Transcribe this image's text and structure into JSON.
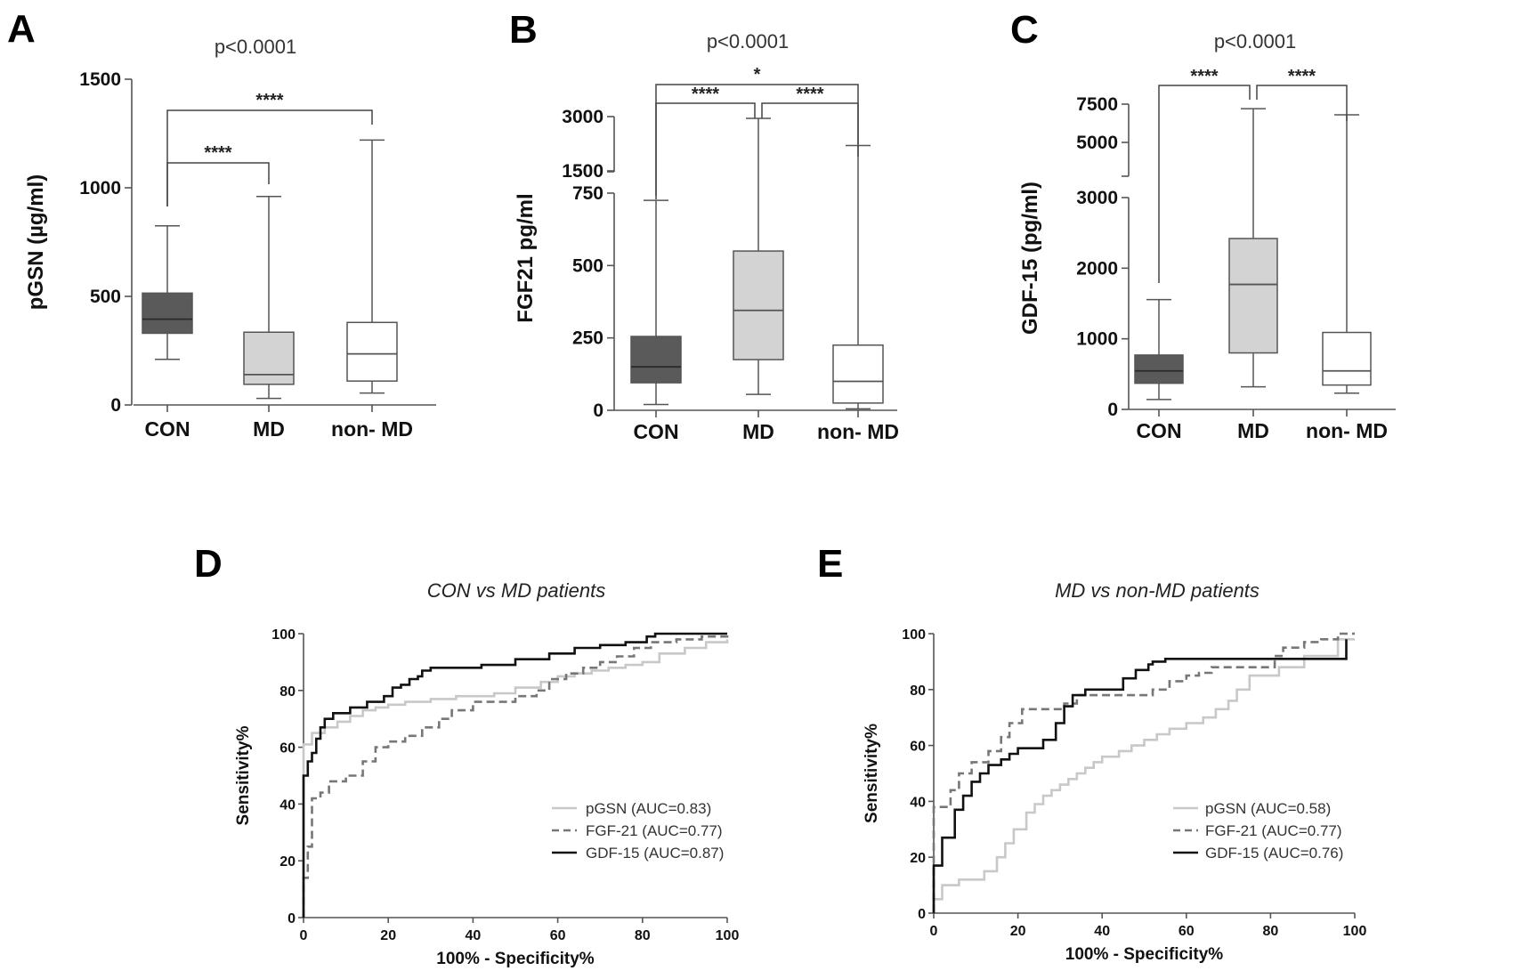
{
  "chart_data": [
    {
      "panel": "A",
      "type": "box",
      "title": "p<0.0001",
      "ylabel": "pGSN (µg/ml)",
      "categories": [
        "CON",
        "MD",
        "non- MD"
      ],
      "yticks": [
        0,
        500,
        1000,
        1500
      ],
      "yticks_text": [
        "0",
        "500",
        "1000",
        "1500"
      ],
      "ylim": [
        0,
        1500
      ],
      "boxes": [
        {
          "name": "CON",
          "min": 210,
          "q1": 330,
          "median": 395,
          "q3": 515,
          "max": 825,
          "fill": "#5a5a5a",
          "median_color": "#2a2a2a"
        },
        {
          "name": "MD",
          "min": 30,
          "q1": 95,
          "median": 140,
          "q3": 335,
          "max": 960,
          "fill": "#d3d3d3",
          "median_color": "#555555"
        },
        {
          "name": "non- MD",
          "min": 55,
          "q1": 110,
          "median": 235,
          "q3": 380,
          "max": 1220,
          "fill": "#ffffff",
          "median_color": "#555555"
        }
      ],
      "significance": [
        {
          "from": "CON",
          "to": "MD",
          "label": "****"
        },
        {
          "from": "CON",
          "to": "non- MD",
          "label": "****"
        }
      ]
    },
    {
      "panel": "B",
      "type": "box",
      "title": "p<0.0001",
      "ylabel": "FGF21 pg/ml",
      "categories": [
        "CON",
        "MD",
        "non- MD"
      ],
      "axis_break": true,
      "lower_yticks": [
        0,
        250,
        500,
        750
      ],
      "lower_yticks_text": [
        "0",
        "250",
        "500",
        "750"
      ],
      "upper_yticks": [
        1500,
        3000
      ],
      "upper_yticks_text": [
        "1500",
        "3000"
      ],
      "boxes": [
        {
          "name": "CON",
          "min": 20,
          "q1": 95,
          "median": 150,
          "q3": 255,
          "max": 725,
          "fill": "#5a5a5a",
          "median_color": "#2a2a2a"
        },
        {
          "name": "MD",
          "min": 55,
          "q1": 175,
          "median": 345,
          "q3": 550,
          "max": 2950,
          "fill": "#d3d3d3",
          "median_color": "#555555"
        },
        {
          "name": "non- MD",
          "min": 5,
          "q1": 25,
          "median": 100,
          "q3": 225,
          "max": 2200,
          "fill": "#ffffff",
          "median_color": "#555555"
        }
      ],
      "significance": [
        {
          "from": "CON",
          "to": "MD",
          "label": "****"
        },
        {
          "from": "MD",
          "to": "non- MD",
          "label": "****"
        },
        {
          "from": "CON",
          "to": "non- MD",
          "label": "*"
        }
      ]
    },
    {
      "panel": "C",
      "type": "box",
      "title": "p<0.0001",
      "ylabel": "GDF-15 (pg/ml)",
      "categories": [
        "CON",
        "MD",
        "non- MD"
      ],
      "axis_break": true,
      "lower_yticks": [
        0,
        1000,
        2000,
        3000
      ],
      "lower_yticks_text": [
        "0",
        "1000",
        "2000",
        "3000"
      ],
      "upper_yticks": [
        5000,
        7500
      ],
      "upper_yticks_text": [
        "5000",
        "7500"
      ],
      "boxes": [
        {
          "name": "CON",
          "min": 140,
          "q1": 370,
          "median": 545,
          "q3": 770,
          "max": 1555,
          "fill": "#5a5a5a",
          "median_color": "#2a2a2a"
        },
        {
          "name": "MD",
          "min": 320,
          "q1": 800,
          "median": 1770,
          "q3": 2420,
          "max": 7200,
          "fill": "#d3d3d3",
          "median_color": "#555555"
        },
        {
          "name": "non- MD",
          "min": 230,
          "q1": 345,
          "median": 545,
          "q3": 1090,
          "max": 6800,
          "fill": "#ffffff",
          "median_color": "#555555"
        }
      ],
      "significance": [
        {
          "from": "CON",
          "to": "MD",
          "label": "****"
        },
        {
          "from": "MD",
          "to": "non- MD",
          "label": "****"
        }
      ]
    },
    {
      "panel": "D",
      "type": "line",
      "subtype": "roc",
      "title": "CON vs MD patients",
      "xlabel": "100% - Specificity%",
      "ylabel": "Sensitivity%",
      "xlim": [
        0,
        100
      ],
      "ylim": [
        0,
        100
      ],
      "xticks": [
        0,
        20,
        40,
        60,
        80,
        100
      ],
      "yticks": [
        0,
        20,
        40,
        60,
        80,
        100
      ],
      "ticks_text": [
        "0",
        "20",
        "40",
        "60",
        "80",
        "100"
      ],
      "series": [
        {
          "name": "pGSN (AUC=0.83)",
          "color": "#c8c8c8",
          "dash": "solid",
          "x": [
            0,
            0,
            2,
            2,
            5,
            5,
            8,
            8,
            11,
            11,
            14,
            14,
            17,
            17,
            20,
            20,
            24,
            24,
            30,
            30,
            36,
            36,
            45,
            45,
            50,
            50,
            56,
            56,
            60,
            60,
            64,
            64,
            68,
            68,
            72,
            72,
            76,
            76,
            80,
            80,
            84,
            84,
            90,
            90,
            95,
            95,
            100,
            100
          ],
          "y": [
            0,
            61,
            61,
            65,
            65,
            67,
            67,
            69,
            69,
            71,
            71,
            73,
            73,
            74,
            74,
            75,
            75,
            76,
            76,
            77,
            77,
            78,
            78,
            79,
            79,
            81,
            81,
            83,
            83,
            85,
            85,
            86,
            86,
            87,
            87,
            88,
            88,
            89,
            89,
            90,
            90,
            93,
            93,
            95,
            95,
            97,
            97,
            98
          ]
        },
        {
          "name": "FGF-21 (AUC=0.77)",
          "color": "#777777",
          "dash": "dashed",
          "x": [
            0,
            0,
            1,
            1,
            2,
            2,
            4,
            4,
            6,
            6,
            10,
            10,
            14,
            14,
            17,
            17,
            20,
            20,
            24,
            24,
            28,
            28,
            32,
            32,
            35,
            35,
            40,
            40,
            50,
            50,
            55,
            55,
            58,
            58,
            62,
            62,
            66,
            66,
            70,
            70,
            74,
            74,
            78,
            78,
            82,
            82,
            88,
            88,
            94,
            94,
            100,
            100
          ],
          "y": [
            0,
            14,
            14,
            25,
            25,
            42,
            42,
            44,
            44,
            48,
            48,
            50,
            50,
            55,
            55,
            60,
            60,
            62,
            62,
            64,
            64,
            67,
            67,
            70,
            70,
            73,
            73,
            76,
            76,
            78,
            78,
            80,
            80,
            84,
            84,
            86,
            86,
            88,
            88,
            90,
            90,
            92,
            92,
            95,
            95,
            97,
            97,
            98,
            98,
            99,
            99,
            100
          ]
        },
        {
          "name": "GDF-15 (AUC=0.87)",
          "color": "#111111",
          "dash": "solid",
          "x": [
            0,
            0,
            1,
            1,
            2,
            2,
            3,
            3,
            4,
            4,
            5,
            5,
            7,
            7,
            11,
            11,
            15,
            15,
            19,
            19,
            21,
            21,
            23,
            23,
            25,
            25,
            27,
            27,
            28,
            28,
            30,
            30,
            42,
            42,
            50,
            50,
            58,
            58,
            64,
            64,
            70,
            70,
            76,
            76,
            81,
            81,
            83,
            83,
            100
          ],
          "y": [
            0,
            50,
            50,
            55,
            55,
            58,
            58,
            63,
            63,
            67,
            67,
            70,
            70,
            72,
            72,
            74,
            74,
            76,
            76,
            78,
            78,
            81,
            81,
            82,
            82,
            84,
            84,
            85,
            85,
            87,
            87,
            88,
            88,
            89,
            89,
            91,
            91,
            93,
            93,
            95,
            95,
            96,
            96,
            97,
            97,
            99,
            99,
            100,
            100
          ]
        }
      ]
    },
    {
      "panel": "E",
      "type": "line",
      "subtype": "roc",
      "title": "MD vs non-MD patients",
      "xlabel": "100% - Specificity%",
      "ylabel": "Sensitivity%",
      "xlim": [
        0,
        100
      ],
      "ylim": [
        0,
        100
      ],
      "xticks": [
        0,
        20,
        40,
        60,
        80,
        100
      ],
      "yticks": [
        0,
        20,
        40,
        60,
        80,
        100
      ],
      "ticks_text": [
        "0",
        "20",
        "40",
        "60",
        "80",
        "100"
      ],
      "series": [
        {
          "name": "pGSN (AUC=0.58)",
          "color": "#c8c8c8",
          "dash": "solid",
          "x": [
            0,
            0,
            2,
            2,
            6,
            6,
            12,
            12,
            15,
            15,
            17,
            17,
            19,
            19,
            22,
            22,
            24,
            24,
            26,
            26,
            28,
            28,
            30,
            30,
            32,
            32,
            34,
            34,
            36,
            36,
            38,
            38,
            40,
            40,
            44,
            44,
            47,
            47,
            50,
            50,
            53,
            53,
            56,
            56,
            60,
            60,
            64,
            64,
            67,
            67,
            70,
            70,
            72,
            72,
            75,
            75,
            82,
            82,
            88,
            88,
            96,
            96,
            100
          ],
          "y": [
            0,
            5,
            5,
            10,
            10,
            12,
            12,
            15,
            15,
            20,
            20,
            25,
            25,
            30,
            30,
            36,
            36,
            39,
            39,
            42,
            42,
            44,
            44,
            46,
            46,
            48,
            48,
            50,
            50,
            52,
            52,
            54,
            54,
            56,
            56,
            58,
            58,
            60,
            60,
            62,
            62,
            64,
            64,
            66,
            66,
            68,
            68,
            70,
            70,
            73,
            73,
            76,
            76,
            80,
            80,
            85,
            85,
            88,
            88,
            92,
            92,
            98,
            98
          ]
        },
        {
          "name": "FGF-21 (AUC=0.77)",
          "color": "#777777",
          "dash": "dashed",
          "x": [
            0,
            0,
            4,
            4,
            6,
            6,
            9,
            9,
            13,
            13,
            16,
            16,
            18,
            18,
            21,
            21,
            31,
            31,
            34,
            34,
            52,
            52,
            56,
            56,
            60,
            60,
            63,
            63,
            66,
            66,
            81,
            81,
            83,
            83,
            88,
            88,
            92,
            92,
            96,
            96,
            100
          ],
          "y": [
            0,
            38,
            38,
            44,
            44,
            50,
            50,
            54,
            54,
            58,
            58,
            63,
            63,
            68,
            68,
            73,
            73,
            75,
            75,
            78,
            78,
            80,
            80,
            83,
            83,
            85,
            85,
            86,
            86,
            88,
            88,
            92,
            92,
            95,
            95,
            97,
            97,
            98,
            98,
            100,
            100
          ]
        },
        {
          "name": "GDF-15 (AUC=0.76)",
          "color": "#111111",
          "dash": "solid",
          "x": [
            0,
            0,
            2,
            2,
            5,
            5,
            7,
            7,
            9,
            9,
            11,
            11,
            13,
            13,
            16,
            16,
            18,
            18,
            20,
            20,
            26,
            26,
            29,
            29,
            31,
            31,
            33,
            33,
            36,
            36,
            45,
            45,
            48,
            48,
            51,
            51,
            52,
            52,
            55,
            55,
            98,
            98
          ],
          "y": [
            0,
            17,
            17,
            27,
            27,
            37,
            37,
            42,
            42,
            47,
            47,
            50,
            50,
            53,
            53,
            55,
            55,
            57,
            57,
            59,
            59,
            62,
            62,
            68,
            68,
            74,
            74,
            78,
            78,
            80,
            80,
            84,
            84,
            87,
            87,
            89,
            89,
            90,
            90,
            91,
            91,
            98
          ]
        }
      ]
    }
  ]
}
